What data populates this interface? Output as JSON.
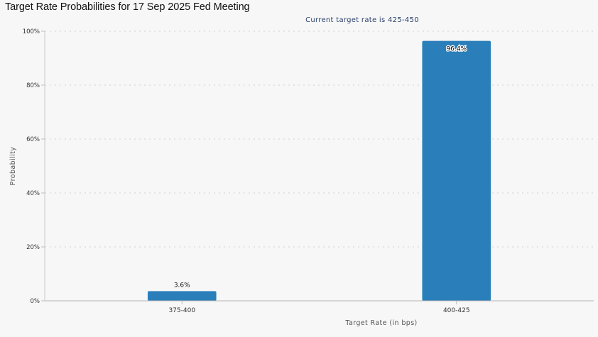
{
  "chart_data": {
    "type": "bar",
    "title": "Target Rate Probabilities for 17 Sep 2025 Fed Meeting",
    "subtitle": "Current target rate is 425-450",
    "xlabel": "Target Rate (in bps)",
    "ylabel": "Probability",
    "categories": [
      "375-400",
      "400-425"
    ],
    "values": [
      3.6,
      96.4
    ],
    "data_labels": [
      "3.6%",
      "96.4%"
    ],
    "ylim": [
      0,
      100
    ],
    "yticks": [
      0,
      20,
      40,
      60,
      80,
      100
    ],
    "ytick_labels": [
      "0%",
      "20%",
      "40%",
      "60%",
      "80%",
      "100%"
    ],
    "grid": true,
    "legend": "none",
    "bar_color": "#2a7fba"
  }
}
